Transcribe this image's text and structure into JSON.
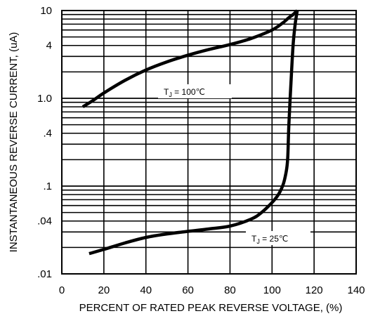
{
  "chart_data": {
    "type": "line",
    "xlabel": "PERCENT OF RATED PEAK REVERSE VOLTAGE, (%)",
    "ylabel": "INSTANTANEOUS REVERSE CURRENT, (uA)",
    "xlim": [
      0,
      140
    ],
    "ylim": [
      0.01,
      10
    ],
    "y_scale": "log",
    "grid": true,
    "x_ticks": [
      "0",
      "20",
      "40",
      "60",
      "80",
      "100",
      "120",
      "140"
    ],
    "y_ticks": [
      {
        "value": 10,
        "label": "10"
      },
      {
        "value": 4,
        "label": "4"
      },
      {
        "value": 1,
        "label": "1.0"
      },
      {
        "value": 0.4,
        "label": ".4"
      },
      {
        "value": 0.1,
        "label": ".1"
      },
      {
        "value": 0.04,
        "label": ".04"
      },
      {
        "value": 0.01,
        "label": ".01"
      }
    ],
    "series": [
      {
        "name": "TJ = 100℃",
        "label": {
          "main": "T",
          "sub": "J",
          "rest": " = 100℃"
        },
        "x": [
          10,
          15,
          20,
          30,
          40,
          50,
          60,
          70,
          80,
          90,
          100,
          105,
          108,
          110,
          112
        ],
        "y": [
          0.8,
          0.95,
          1.15,
          1.6,
          2.1,
          2.6,
          3.1,
          3.6,
          4.1,
          4.8,
          6.0,
          7.2,
          8.3,
          9.0,
          10
        ]
      },
      {
        "name": "TJ = 25℃",
        "label": {
          "main": "T",
          "sub": "J",
          "rest": " = 25℃"
        },
        "x": [
          13,
          20,
          30,
          40,
          50,
          60,
          70,
          80,
          90,
          95,
          100,
          103,
          105,
          106,
          107,
          107.5,
          108,
          109,
          110,
          111,
          112
        ],
        "y": [
          0.017,
          0.019,
          0.0225,
          0.026,
          0.0285,
          0.0305,
          0.0325,
          0.035,
          0.042,
          0.05,
          0.065,
          0.08,
          0.1,
          0.12,
          0.16,
          0.22,
          0.5,
          1.5,
          4.0,
          7.0,
          10
        ]
      }
    ]
  }
}
